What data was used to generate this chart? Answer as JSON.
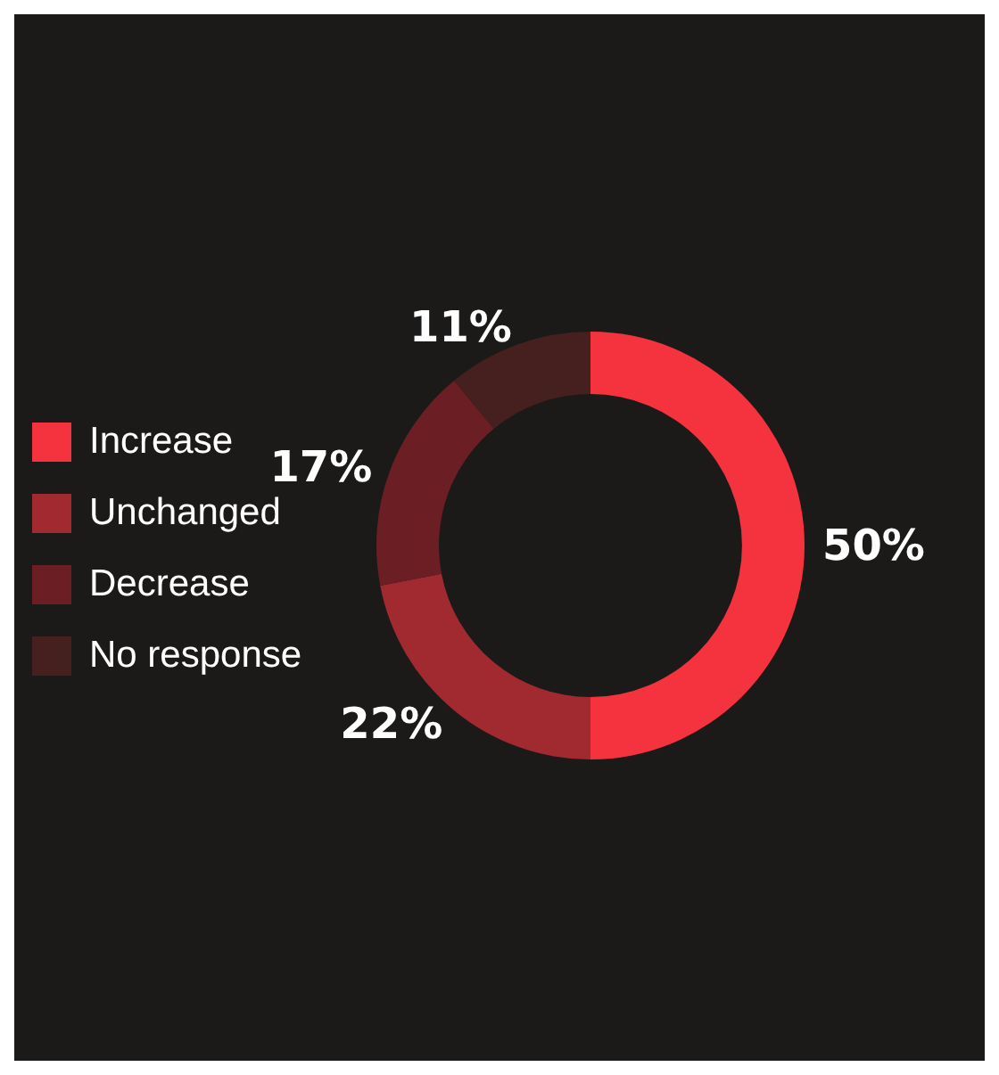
{
  "chart_data": {
    "type": "donut",
    "categories": [
      "Increase",
      "Unchanged",
      "Decrease",
      "No response"
    ],
    "values": [
      50,
      22,
      17,
      11
    ],
    "value_labels": [
      "50%",
      "22%",
      "17%",
      "11%"
    ],
    "colors": [
      "#f5333f",
      "#a12a31",
      "#6b1f24",
      "#45201f"
    ],
    "legend": "left"
  }
}
